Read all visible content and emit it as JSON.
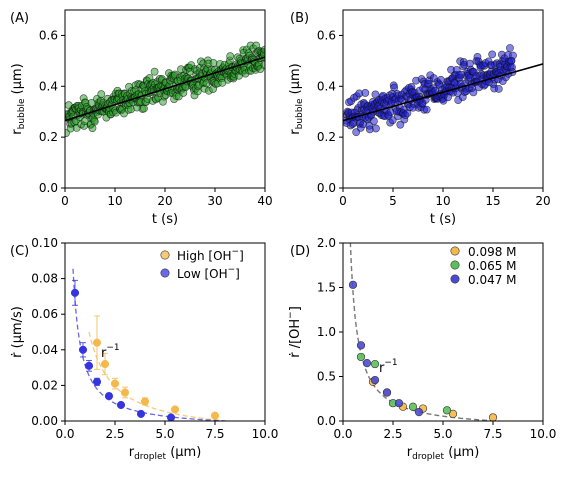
{
  "figure": {
    "chart_data": [
      {
        "panel": "(A)",
        "type": "scatter",
        "xlabel": "t (s)",
        "ylabel_main": "r",
        "ylabel_sub": "bubble",
        "ylabel_unit": " (μm)",
        "xlim": [
          0,
          40
        ],
        "ylim": [
          0.0,
          0.7
        ],
        "xticks": [
          0,
          10,
          20,
          30,
          40
        ],
        "yticks": [
          0.0,
          0.2,
          0.4,
          0.6
        ],
        "point_color": "#2ca02c",
        "fit_color": "#000000",
        "fit_line": {
          "x": [
            0,
            40
          ],
          "y": [
            0.265,
            0.515
          ]
        },
        "scatter": {
          "t_start": 0.2,
          "t_end": 40,
          "count": 430,
          "y_intercept": 0.27,
          "y_slope": 0.00615,
          "noise": 0.03
        }
      },
      {
        "panel": "(B)",
        "type": "scatter",
        "xlabel": "t (s)",
        "ylabel_main": "r",
        "ylabel_sub": "bubble",
        "ylabel_unit": " (μm)",
        "xlim": [
          0,
          20
        ],
        "ylim": [
          0.0,
          0.7
        ],
        "xticks": [
          0,
          5,
          10,
          15,
          20
        ],
        "yticks": [
          0.0,
          0.2,
          0.4,
          0.6
        ],
        "point_color": "#1f1fd6",
        "fit_color": "#000000",
        "fit_line": {
          "x": [
            0,
            20
          ],
          "y": [
            0.265,
            0.488
          ]
        },
        "scatter": {
          "t_start": 0.3,
          "t_end": 17,
          "count": 330,
          "y_intercept": 0.27,
          "y_slope": 0.0125,
          "noise": 0.035
        }
      },
      {
        "panel": "(C)",
        "type": "scatter",
        "xlabel_main": "r",
        "xlabel_sub": "droplet",
        "xlabel_unit": " (μm)",
        "ylabel": "ṙ (μm/s)",
        "xlim": [
          0,
          10
        ],
        "ylim": [
          0.0,
          0.1
        ],
        "xticks": [
          0.0,
          2.5,
          5.0,
          7.5,
          10.0
        ],
        "yticks": [
          0.0,
          0.02,
          0.04,
          0.06,
          0.08,
          0.1
        ],
        "annotation_main": "r",
        "annotation_sup": "−1",
        "annotation_pos": [
          1.8,
          0.036
        ],
        "series": [
          {
            "label_text": "High [OH",
            "label_sup": "−",
            "label_tail": "]",
            "color": "#f5b84a",
            "x": [
              1.6,
              2.0,
              2.5,
              3.0,
              4.0,
              5.5,
              7.5
            ],
            "y": [
              0.044,
              0.032,
              0.021,
              0.016,
              0.011,
              0.0065,
              0.003
            ],
            "err": [
              0.015,
              0.006,
              0.003,
              0.003,
              0.002,
              0.001,
              0.001
            ],
            "fit_k": 0.0706,
            "fit_x0": 1.2
          },
          {
            "label_text": "Low [OH",
            "label_sup": "−",
            "label_tail": "]",
            "color": "#3535e0",
            "x": [
              0.5,
              0.9,
              1.2,
              1.6,
              2.2,
              2.8,
              3.8,
              5.3
            ],
            "y": [
              0.072,
              0.04,
              0.031,
              0.022,
              0.014,
              0.009,
              0.004,
              0.002
            ],
            "err": [
              0.007,
              0.004,
              0.003,
              0.002,
              0.0015,
              0.001,
              0.001,
              0.0008
            ],
            "fit_k": 0.036,
            "fit_x0": 0.4
          }
        ]
      },
      {
        "panel": "(D)",
        "type": "scatter",
        "xlabel_main": "r",
        "xlabel_sub": "droplet",
        "xlabel_unit": " (μm)",
        "ylabel_main": "ṙ /[OH",
        "ylabel_sup": "−",
        "ylabel_tail": "]",
        "xlim": [
          0,
          10
        ],
        "ylim": [
          0.0,
          2.0
        ],
        "xticks": [
          0.0,
          2.5,
          5.0,
          7.5,
          10.0
        ],
        "yticks": [
          0.0,
          0.5,
          1.0,
          1.5,
          2.0
        ],
        "annotation_main": "r",
        "annotation_sup": "−1",
        "annotation_pos": [
          1.8,
          0.55
        ],
        "fit_k": 0.77,
        "fit_color": "#777777",
        "series": [
          {
            "name": "0.098 M",
            "color": "#f5b84a",
            "x": [
              1.5,
              2.2,
              3.0,
              4.0,
              5.5,
              7.5
            ],
            "y": [
              0.44,
              0.32,
              0.16,
              0.14,
              0.08,
              0.04
            ]
          },
          {
            "name": "0.065 M",
            "color": "#5bbf5b",
            "x": [
              0.9,
              1.6,
              2.5,
              3.5,
              5.2
            ],
            "y": [
              0.72,
              0.64,
              0.2,
              0.16,
              0.12
            ]
          },
          {
            "name": "0.047 M",
            "color": "#4a4ad6",
            "x": [
              0.5,
              0.9,
              1.2,
              1.6,
              2.2,
              2.8,
              3.8
            ],
            "y": [
              1.53,
              0.85,
              0.65,
              0.46,
              0.32,
              0.2,
              0.1
            ]
          }
        ]
      }
    ]
  }
}
